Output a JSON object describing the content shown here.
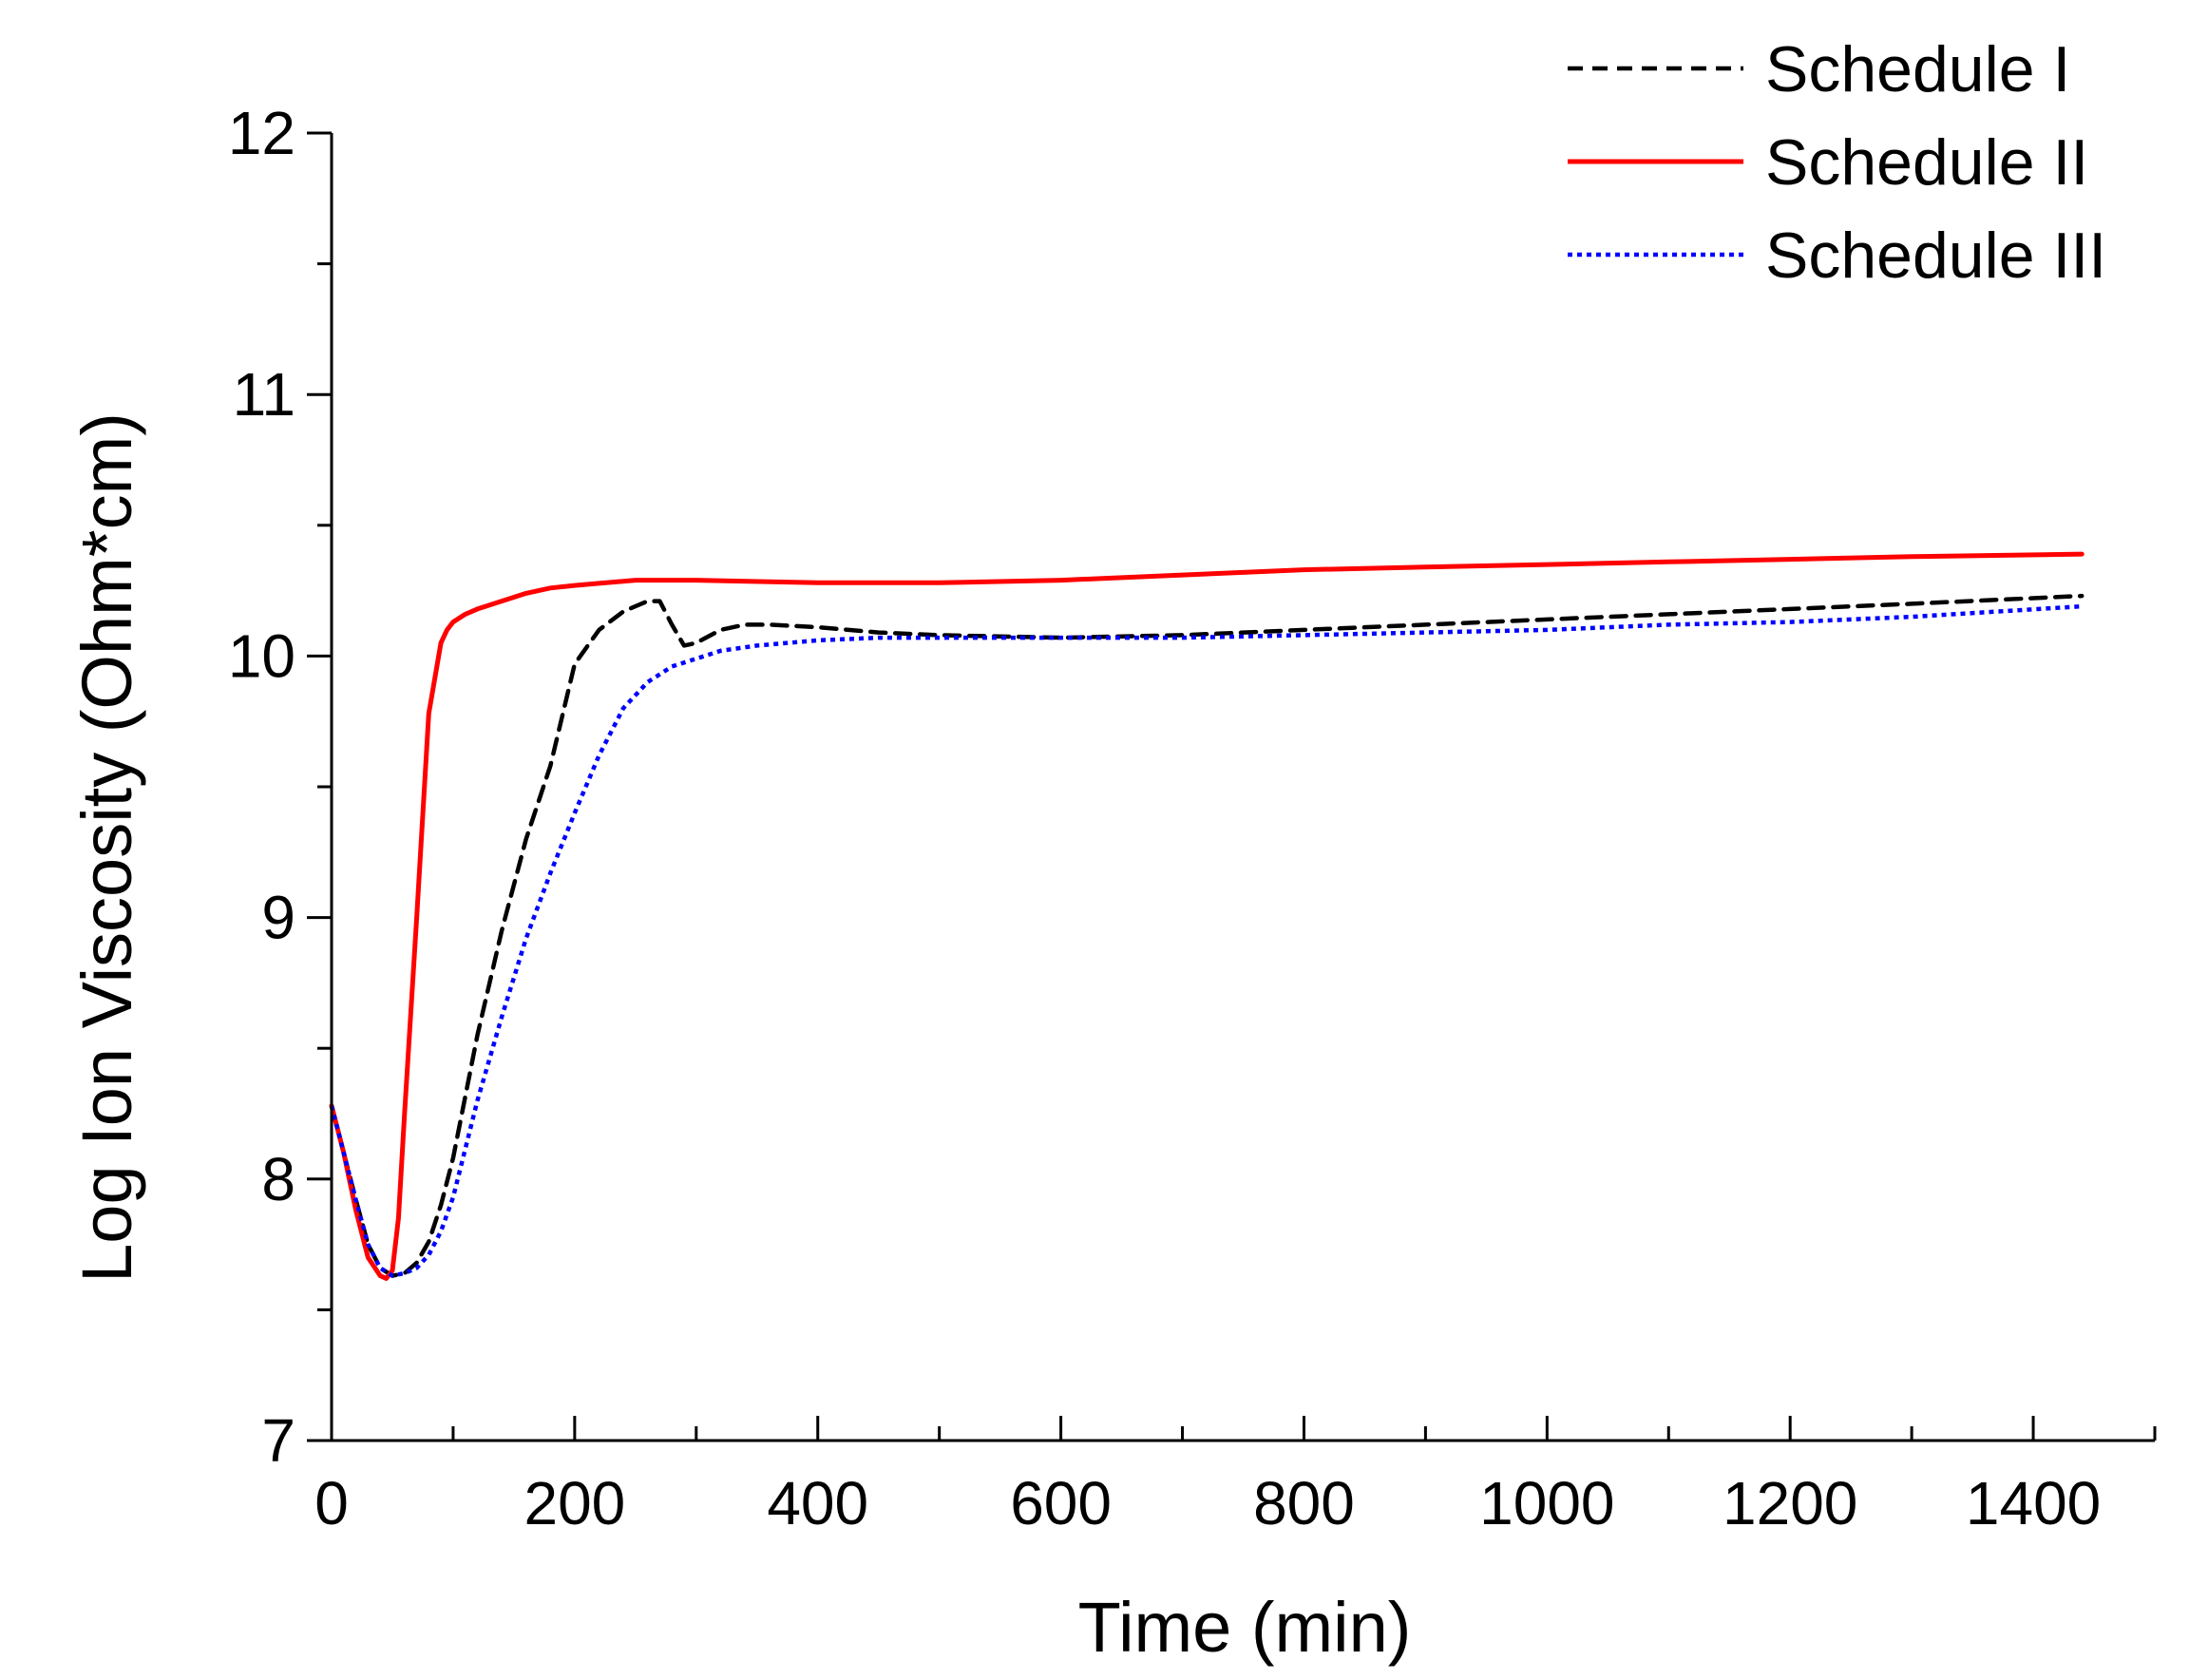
{
  "chart_data": {
    "type": "line",
    "title": "",
    "xlabel": "Time (min)",
    "ylabel": "Log Ion Viscosity (Ohm*cm)",
    "xlim": [
      0,
      1500
    ],
    "ylim": [
      7,
      12
    ],
    "xticks": [
      0,
      200,
      400,
      600,
      800,
      1000,
      1200,
      1400
    ],
    "yticks": [
      7,
      8,
      9,
      10,
      11,
      12
    ],
    "xminor_step": 100,
    "yminor_step": 0.5,
    "grid": false,
    "legend_position": "top-right",
    "series": [
      {
        "name": "Schedule I",
        "color": "#000000",
        "style": "dashed",
        "x": [
          0,
          10,
          20,
          30,
          40,
          50,
          60,
          70,
          80,
          90,
          100,
          120,
          140,
          160,
          180,
          200,
          220,
          240,
          260,
          270,
          280,
          290,
          300,
          320,
          340,
          360,
          400,
          450,
          500,
          600,
          700,
          800,
          900,
          1000,
          1100,
          1200,
          1300,
          1440
        ],
        "y": [
          8.28,
          8.1,
          7.92,
          7.75,
          7.66,
          7.63,
          7.64,
          7.68,
          7.76,
          7.9,
          8.08,
          8.55,
          8.95,
          9.3,
          9.58,
          9.97,
          10.1,
          10.17,
          10.21,
          10.21,
          10.12,
          10.04,
          10.05,
          10.1,
          10.12,
          10.12,
          10.11,
          10.09,
          10.08,
          10.07,
          10.08,
          10.1,
          10.12,
          10.14,
          10.16,
          10.18,
          10.2,
          10.23
        ]
      },
      {
        "name": "Schedule II",
        "color": "#ff0000",
        "style": "solid",
        "x": [
          0,
          10,
          20,
          30,
          40,
          45,
          50,
          55,
          60,
          70,
          80,
          90,
          95,
          100,
          110,
          120,
          140,
          160,
          180,
          200,
          250,
          300,
          400,
          500,
          600,
          700,
          800,
          900,
          1000,
          1100,
          1200,
          1300,
          1440
        ],
        "y": [
          8.28,
          8.1,
          7.88,
          7.7,
          7.63,
          7.62,
          7.65,
          7.85,
          8.25,
          9.0,
          9.78,
          10.05,
          10.1,
          10.13,
          10.16,
          10.18,
          10.21,
          10.24,
          10.26,
          10.27,
          10.29,
          10.29,
          10.28,
          10.28,
          10.29,
          10.31,
          10.33,
          10.34,
          10.35,
          10.36,
          10.37,
          10.38,
          10.39
        ]
      },
      {
        "name": "Schedule III",
        "color": "#0000ff",
        "style": "dotted",
        "x": [
          0,
          10,
          20,
          30,
          40,
          50,
          60,
          70,
          80,
          90,
          100,
          120,
          140,
          160,
          180,
          200,
          220,
          240,
          260,
          280,
          300,
          320,
          350,
          400,
          450,
          500,
          600,
          700,
          800,
          900,
          1000,
          1100,
          1200,
          1300,
          1440
        ],
        "y": [
          8.28,
          8.1,
          7.92,
          7.75,
          7.66,
          7.63,
          7.64,
          7.66,
          7.71,
          7.8,
          7.93,
          8.3,
          8.62,
          8.92,
          9.17,
          9.4,
          9.62,
          9.8,
          9.9,
          9.96,
          9.99,
          10.02,
          10.04,
          10.06,
          10.07,
          10.07,
          10.07,
          10.07,
          10.08,
          10.09,
          10.1,
          10.12,
          10.13,
          10.15,
          10.19
        ]
      }
    ]
  }
}
